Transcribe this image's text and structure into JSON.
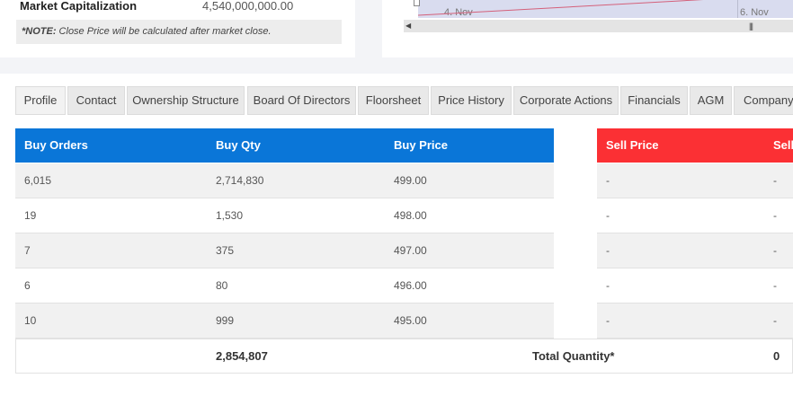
{
  "summary": {
    "market_cap_label": "Market Capitalization",
    "market_cap_value": "4,540,000,000.00",
    "note_prefix": "*NOTE:",
    "note_text": " Close Price will be calculated after market close."
  },
  "chart_preview": {
    "axis_labels": [
      "4. Nov",
      "6. Nov"
    ],
    "scroll_left_glyph": "◀",
    "scroll_grip_glyph": "|||"
  },
  "tabs": [
    {
      "label": "Profile"
    },
    {
      "label": "Contact"
    },
    {
      "label": "Ownership Structure"
    },
    {
      "label": "Board Of Directors"
    },
    {
      "label": "Floorsheet"
    },
    {
      "label": "Price History"
    },
    {
      "label": "Corporate Actions"
    },
    {
      "label": "Financials"
    },
    {
      "label": "AGM"
    },
    {
      "label": "Company"
    }
  ],
  "order_book": {
    "buy_headers": {
      "orders": "Buy Orders",
      "qty": "Buy Qty",
      "price": "Buy Price"
    },
    "sell_headers": {
      "price": "Sell Price",
      "qty": "Sell"
    },
    "rows": [
      {
        "buy_orders": "6,015",
        "buy_qty": "2,714,830",
        "buy_price": "499.00",
        "sell_price": "-",
        "sell_qty": "-"
      },
      {
        "buy_orders": "19",
        "buy_qty": "1,530",
        "buy_price": "498.00",
        "sell_price": "-",
        "sell_qty": "-"
      },
      {
        "buy_orders": "7",
        "buy_qty": "375",
        "buy_price": "497.00",
        "sell_price": "-",
        "sell_qty": "-"
      },
      {
        "buy_orders": "6",
        "buy_qty": "80",
        "buy_price": "496.00",
        "sell_price": "-",
        "sell_qty": "-"
      },
      {
        "buy_orders": "10",
        "buy_qty": "999",
        "buy_price": "495.00",
        "sell_price": "-",
        "sell_qty": "-"
      }
    ],
    "total_buy_qty": "2,854,807",
    "total_label": "Total Quantity*",
    "total_sell_qty": "0"
  },
  "colors": {
    "buy_header": "#0a76d8",
    "sell_header": "#fb3034"
  }
}
